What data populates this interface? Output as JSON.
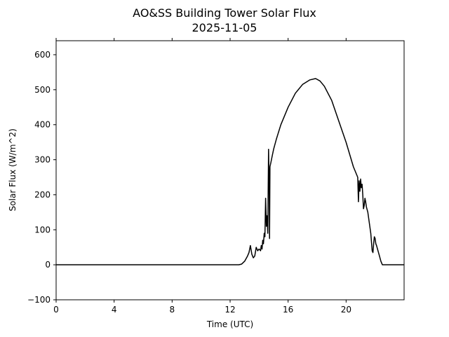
{
  "chart_data": {
    "type": "line",
    "title": "AO&SS Building Tower Solar Flux",
    "subtitle": "2025-11-05",
    "xlabel": "Time (UTC)",
    "ylabel": "Solar Flux (W/m^2)",
    "xlim": [
      0,
      24
    ],
    "ylim": [
      -100,
      640
    ],
    "xticks": [
      0,
      4,
      8,
      12,
      16,
      20
    ],
    "yticks": [
      -100,
      0,
      100,
      200,
      300,
      400,
      500,
      600
    ],
    "grid": false,
    "line_color": "#000000",
    "series": [
      {
        "x": [
          0,
          12.6,
          12.8,
          13.0,
          13.2,
          13.3,
          13.4,
          13.5,
          13.6,
          13.7,
          13.8,
          13.9,
          14.0,
          14.1,
          14.15,
          14.2,
          14.25,
          14.3,
          14.35,
          14.4,
          14.45,
          14.5,
          14.55,
          14.6,
          14.65,
          14.7,
          14.72,
          14.75,
          14.8,
          14.9,
          15.0,
          15.2,
          15.5,
          16.0,
          16.5,
          17.0,
          17.5,
          17.9,
          18.2,
          18.5,
          19.0,
          19.5,
          20.0,
          20.5,
          20.8,
          20.85,
          20.9,
          20.95,
          21.0,
          21.05,
          21.1,
          21.15,
          21.2,
          21.25,
          21.3,
          21.35,
          21.4,
          21.5,
          21.6,
          21.7,
          21.8,
          21.85,
          21.9,
          21.95,
          22.0,
          22.05,
          22.1,
          22.2,
          22.3,
          22.4,
          22.5,
          22.6,
          22.7,
          23.0,
          24.0
        ],
        "y": [
          0,
          0,
          2,
          10,
          25,
          35,
          55,
          30,
          20,
          25,
          50,
          40,
          45,
          40,
          55,
          45,
          70,
          60,
          90,
          80,
          190,
          110,
          140,
          90,
          330,
          200,
          75,
          280,
          290,
          310,
          330,
          360,
          400,
          450,
          490,
          515,
          528,
          532,
          525,
          510,
          470,
          410,
          350,
          280,
          250,
          180,
          240,
          210,
          245,
          220,
          230,
          200,
          160,
          170,
          190,
          180,
          165,
          150,
          120,
          90,
          40,
          35,
          60,
          80,
          75,
          60,
          55,
          40,
          25,
          10,
          0,
          0,
          0,
          0,
          0
        ]
      }
    ]
  }
}
